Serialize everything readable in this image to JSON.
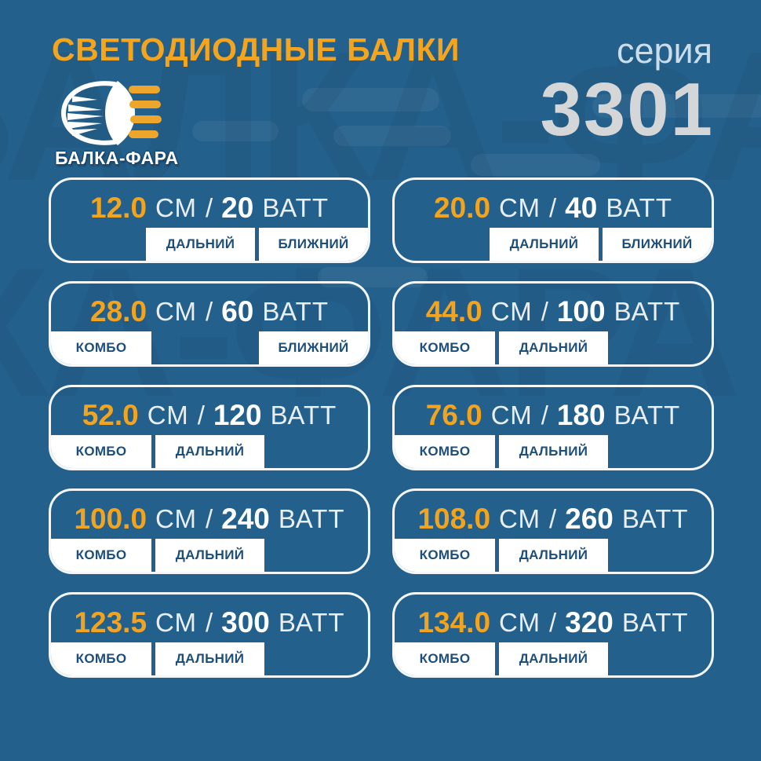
{
  "colors": {
    "background": "#24608C",
    "accent_orange": "#F5A51D",
    "navy_text": "#1D4F7A",
    "card_border": "#F3F7FA",
    "series_gray": "#D4D6D8"
  },
  "header": {
    "title": "СВЕТОДИОДНЫЕ БАЛКИ",
    "series_label": "серия",
    "series_number": "3301",
    "brand_name": "БАЛКА-ФАРА",
    "logo_icon": "headlight-beam-icon"
  },
  "watermark": {
    "text": "БАЛКА-ФАРА"
  },
  "units": {
    "length": "СМ",
    "separator": "/",
    "power": "ВАТТ"
  },
  "cards": [
    {
      "length": "12.0",
      "watts": "20",
      "tags": [
        "ДАЛЬНИЙ",
        "БЛИЖНИЙ"
      ],
      "layout": "right"
    },
    {
      "length": "20.0",
      "watts": "40",
      "tags": [
        "ДАЛЬНИЙ",
        "БЛИЖНИЙ"
      ],
      "layout": "right"
    },
    {
      "length": "28.0",
      "watts": "60",
      "tags": [
        "КОМБО",
        "БЛИЖНИЙ"
      ],
      "layout": "split"
    },
    {
      "length": "44.0",
      "watts": "100",
      "tags": [
        "КОМБО",
        "ДАЛЬНИЙ"
      ],
      "layout": "left"
    },
    {
      "length": "52.0",
      "watts": "120",
      "tags": [
        "КОМБО",
        "ДАЛЬНИЙ"
      ],
      "layout": "left"
    },
    {
      "length": "76.0",
      "watts": "180",
      "tags": [
        "КОМБО",
        "ДАЛЬНИЙ"
      ],
      "layout": "left"
    },
    {
      "length": "100.0",
      "watts": "240",
      "tags": [
        "КОМБО",
        "ДАЛЬНИЙ"
      ],
      "layout": "left"
    },
    {
      "length": "108.0",
      "watts": "260",
      "tags": [
        "КОМБО",
        "ДАЛЬНИЙ"
      ],
      "layout": "left"
    },
    {
      "length": "123.5",
      "watts": "300",
      "tags": [
        "КОМБО",
        "ДАЛЬНИЙ"
      ],
      "layout": "left"
    },
    {
      "length": "134.0",
      "watts": "320",
      "tags": [
        "КОМБО",
        "ДАЛЬНИЙ"
      ],
      "layout": "left"
    }
  ]
}
